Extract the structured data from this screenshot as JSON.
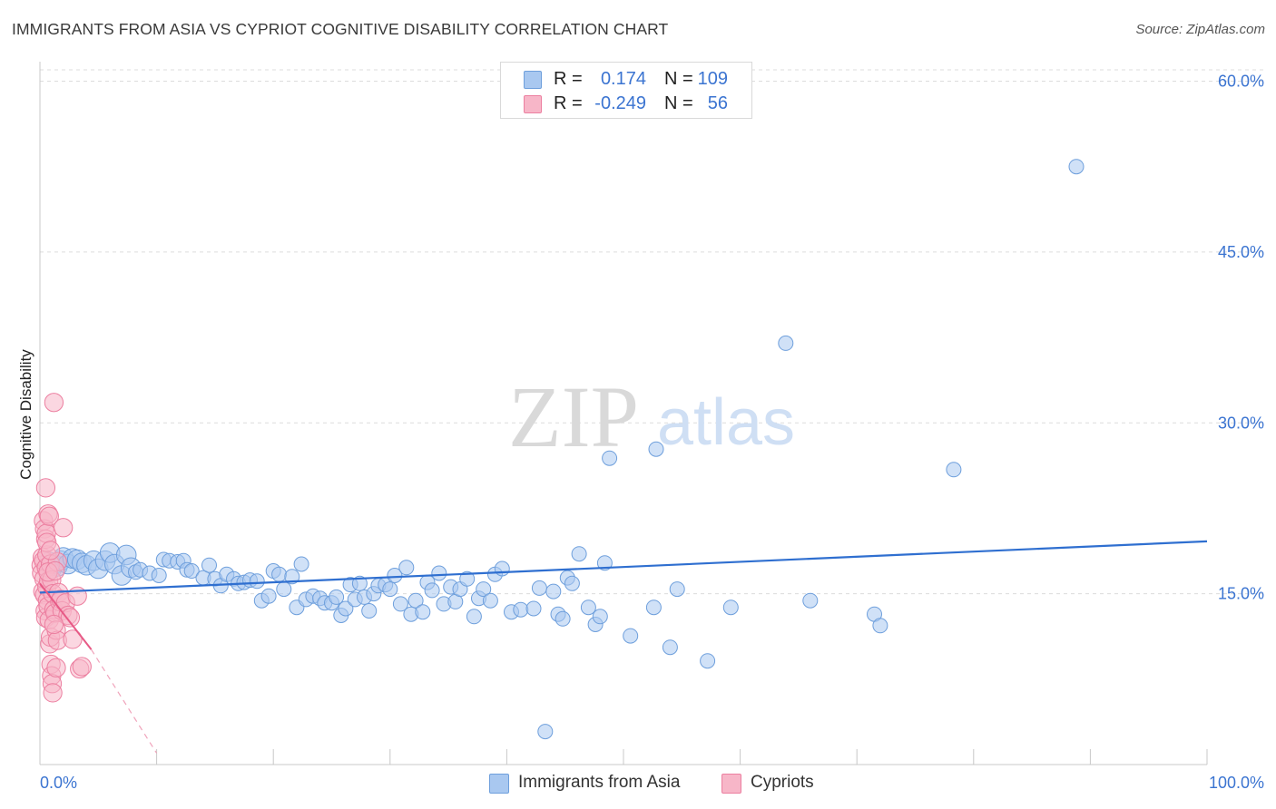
{
  "header": {
    "title": "IMMIGRANTS FROM ASIA VS CYPRIOT COGNITIVE DISABILITY CORRELATION CHART",
    "source": "Source: ZipAtlas.com"
  },
  "watermark": {
    "zip": "ZIP",
    "atlas": "atlas"
  },
  "colors": {
    "blue_fill": "#a9c8f0",
    "blue_stroke": "#6e9fdc",
    "blue_line": "#2f6fd0",
    "pink_fill": "#f7b6c8",
    "pink_stroke": "#ec7fa0",
    "pink_line": "#e75a86",
    "grid": "#dcdcdc",
    "tick_text": "#3b74d1"
  },
  "legend": {
    "rows": [
      {
        "r_label": "R =",
        "r_value": "0.174",
        "n_label": "N =",
        "n_value": "109",
        "color": "#a9c8f0",
        "border": "#6e9fdc"
      },
      {
        "r_label": "R =",
        "r_value": "-0.249",
        "n_label": "N =",
        "n_value": "56",
        "color": "#f7b6c8",
        "border": "#ec7fa0"
      }
    ]
  },
  "bottom_legend": [
    {
      "label": "Immigrants from Asia",
      "color": "#a9c8f0",
      "border": "#6e9fdc"
    },
    {
      "label": "Cypriots",
      "color": "#f7b6c8",
      "border": "#ec7fa0"
    }
  ],
  "chart_data": {
    "type": "scatter",
    "title": "IMMIGRANTS FROM ASIA VS CYPRIOT COGNITIVE DISABILITY CORRELATION CHART",
    "xlabel": "",
    "ylabel": "Cognitive Disability",
    "xlim": [
      0,
      100
    ],
    "ylim": [
      0,
      61
    ],
    "x_tick_labels": [
      "0.0%",
      "100.0%"
    ],
    "y_ticks": [
      15,
      30,
      45,
      60
    ],
    "y_tick_labels": [
      "15.0%",
      "30.0%",
      "45.0%",
      "60.0%"
    ],
    "legend_position": "top-center",
    "series": [
      {
        "name": "Immigrants from Asia",
        "r": 0.174,
        "n": 109,
        "trend": {
          "x": [
            0,
            100
          ],
          "y": [
            15.1,
            19.6
          ]
        },
        "points": [
          [
            0.8,
            17.8
          ],
          [
            1,
            17.2
          ],
          [
            1.2,
            17.6
          ],
          [
            1.5,
            17.4
          ],
          [
            1.8,
            17.9
          ],
          [
            2,
            18.2
          ],
          [
            2.4,
            17.6
          ],
          [
            2.8,
            18.1
          ],
          [
            3.2,
            18
          ],
          [
            3.6,
            17.7
          ],
          [
            4,
            17.5
          ],
          [
            4.6,
            17.9
          ],
          [
            5,
            17.2
          ],
          [
            5.6,
            17.9
          ],
          [
            6,
            18.6
          ],
          [
            6.4,
            17.6
          ],
          [
            7,
            16.6
          ],
          [
            7.4,
            18.4
          ],
          [
            7.8,
            17.3
          ],
          [
            8.2,
            16.9
          ],
          [
            8.6,
            17.1
          ],
          [
            9.4,
            16.8
          ],
          [
            10.2,
            16.6
          ],
          [
            10.6,
            18
          ],
          [
            11.1,
            17.9
          ],
          [
            11.8,
            17.8
          ],
          [
            12.3,
            17.9
          ],
          [
            12.6,
            17.1
          ],
          [
            13,
            17
          ],
          [
            14,
            16.4
          ],
          [
            14.5,
            17.5
          ],
          [
            15,
            16.3
          ],
          [
            15.5,
            15.7
          ],
          [
            16,
            16.7
          ],
          [
            16.6,
            16.3
          ],
          [
            17,
            15.9
          ],
          [
            17.5,
            16
          ],
          [
            18,
            16.2
          ],
          [
            18.6,
            16.1
          ],
          [
            19,
            14.4
          ],
          [
            19.6,
            14.8
          ],
          [
            20,
            17
          ],
          [
            20.5,
            16.7
          ],
          [
            20.9,
            15.4
          ],
          [
            21.6,
            16.5
          ],
          [
            22,
            13.8
          ],
          [
            22.4,
            17.6
          ],
          [
            22.8,
            14.5
          ],
          [
            23.4,
            14.8
          ],
          [
            24,
            14.6
          ],
          [
            24.4,
            14.2
          ],
          [
            25,
            14.2
          ],
          [
            25.4,
            14.7
          ],
          [
            25.8,
            13.1
          ],
          [
            26.2,
            13.7
          ],
          [
            26.6,
            15.8
          ],
          [
            27,
            14.5
          ],
          [
            27.4,
            15.9
          ],
          [
            27.8,
            14.7
          ],
          [
            28.2,
            13.5
          ],
          [
            28.6,
            15
          ],
          [
            29,
            15.7
          ],
          [
            29.6,
            15.8
          ],
          [
            30,
            15.4
          ],
          [
            30.4,
            16.6
          ],
          [
            30.9,
            14.1
          ],
          [
            31.4,
            17.3
          ],
          [
            31.8,
            13.2
          ],
          [
            32.2,
            14.4
          ],
          [
            32.8,
            13.4
          ],
          [
            33.2,
            16
          ],
          [
            33.6,
            15.3
          ],
          [
            34.2,
            16.8
          ],
          [
            34.6,
            14.1
          ],
          [
            35.2,
            15.6
          ],
          [
            35.6,
            14.3
          ],
          [
            36,
            15.4
          ],
          [
            36.6,
            16.3
          ],
          [
            37.2,
            13
          ],
          [
            37.6,
            14.6
          ],
          [
            38,
            15.4
          ],
          [
            38.6,
            14.4
          ],
          [
            39,
            16.7
          ],
          [
            39.6,
            17.2
          ],
          [
            40.4,
            13.4
          ],
          [
            41.2,
            13.6
          ],
          [
            42.3,
            13.7
          ],
          [
            42.8,
            15.5
          ],
          [
            44,
            15.2
          ],
          [
            44.4,
            13.2
          ],
          [
            44.8,
            12.8
          ],
          [
            45.2,
            16.4
          ],
          [
            45.6,
            15.9
          ],
          [
            46.2,
            18.5
          ],
          [
            47,
            13.8
          ],
          [
            47.6,
            12.3
          ],
          [
            48,
            13
          ],
          [
            48.4,
            17.7
          ],
          [
            48.8,
            26.9
          ],
          [
            50.6,
            11.3
          ],
          [
            52.6,
            13.8
          ],
          [
            52.8,
            27.7
          ],
          [
            54,
            10.3
          ],
          [
            54.6,
            15.4
          ],
          [
            57.2,
            9.1
          ],
          [
            59.2,
            13.8
          ],
          [
            63.9,
            37
          ],
          [
            66,
            14.4
          ],
          [
            71.5,
            13.2
          ],
          [
            72,
            12.2
          ],
          [
            78.3,
            25.9
          ],
          [
            88.8,
            52.5
          ],
          [
            43.3,
            2.9
          ]
        ]
      },
      {
        "name": "Cypriots",
        "r": -0.249,
        "n": 56,
        "trend": {
          "x": [
            0,
            4.4
          ],
          "y": [
            15.9,
            10.1
          ],
          "dashed_to": [
            10,
            1.0
          ]
        },
        "points": [
          [
            0.1,
            17.5
          ],
          [
            0.15,
            16.8
          ],
          [
            0.2,
            18.2
          ],
          [
            0.25,
            15.2
          ],
          [
            0.3,
            17.9
          ],
          [
            0.35,
            16.3
          ],
          [
            0.4,
            14.9
          ],
          [
            0.45,
            13.5
          ],
          [
            0.5,
            12.9
          ],
          [
            0.55,
            17.3
          ],
          [
            0.6,
            18.4
          ],
          [
            0.6,
            15.6
          ],
          [
            0.65,
            14.4
          ],
          [
            0.7,
            13.9
          ],
          [
            0.75,
            16.1
          ],
          [
            0.8,
            12.7
          ],
          [
            0.85,
            10.6
          ],
          [
            0.9,
            11.2
          ],
          [
            0.95,
            8.8
          ],
          [
            1,
            7.8
          ],
          [
            1.05,
            7.1
          ],
          [
            1.1,
            6.3
          ],
          [
            0.3,
            21.4
          ],
          [
            0.4,
            20.7
          ],
          [
            0.5,
            19.8
          ],
          [
            0.55,
            20.3
          ],
          [
            0.6,
            19.5
          ],
          [
            0.7,
            22
          ],
          [
            0.8,
            21.8
          ],
          [
            0.5,
            24.3
          ],
          [
            0.9,
            17.6
          ],
          [
            1,
            16.2
          ],
          [
            1.1,
            15
          ],
          [
            1.2,
            13.6
          ],
          [
            1.3,
            13.3
          ],
          [
            1.4,
            11.8
          ],
          [
            1.5,
            10.9
          ],
          [
            1.5,
            17.8
          ],
          [
            1.6,
            15.1
          ],
          [
            1.7,
            14.3
          ],
          [
            1.8,
            14.5
          ],
          [
            1.9,
            13.5
          ],
          [
            2,
            20.8
          ],
          [
            2.2,
            14.2
          ],
          [
            2.4,
            13.1
          ],
          [
            2.6,
            12.9
          ],
          [
            2.8,
            11
          ],
          [
            3.2,
            14.8
          ],
          [
            3.4,
            8.4
          ],
          [
            3.6,
            8.6
          ],
          [
            1.2,
            31.8
          ],
          [
            0.9,
            18.8
          ],
          [
            0.7,
            16.9
          ],
          [
            1.3,
            17
          ],
          [
            1.4,
            8.5
          ],
          [
            1.2,
            12.3
          ]
        ]
      }
    ]
  }
}
